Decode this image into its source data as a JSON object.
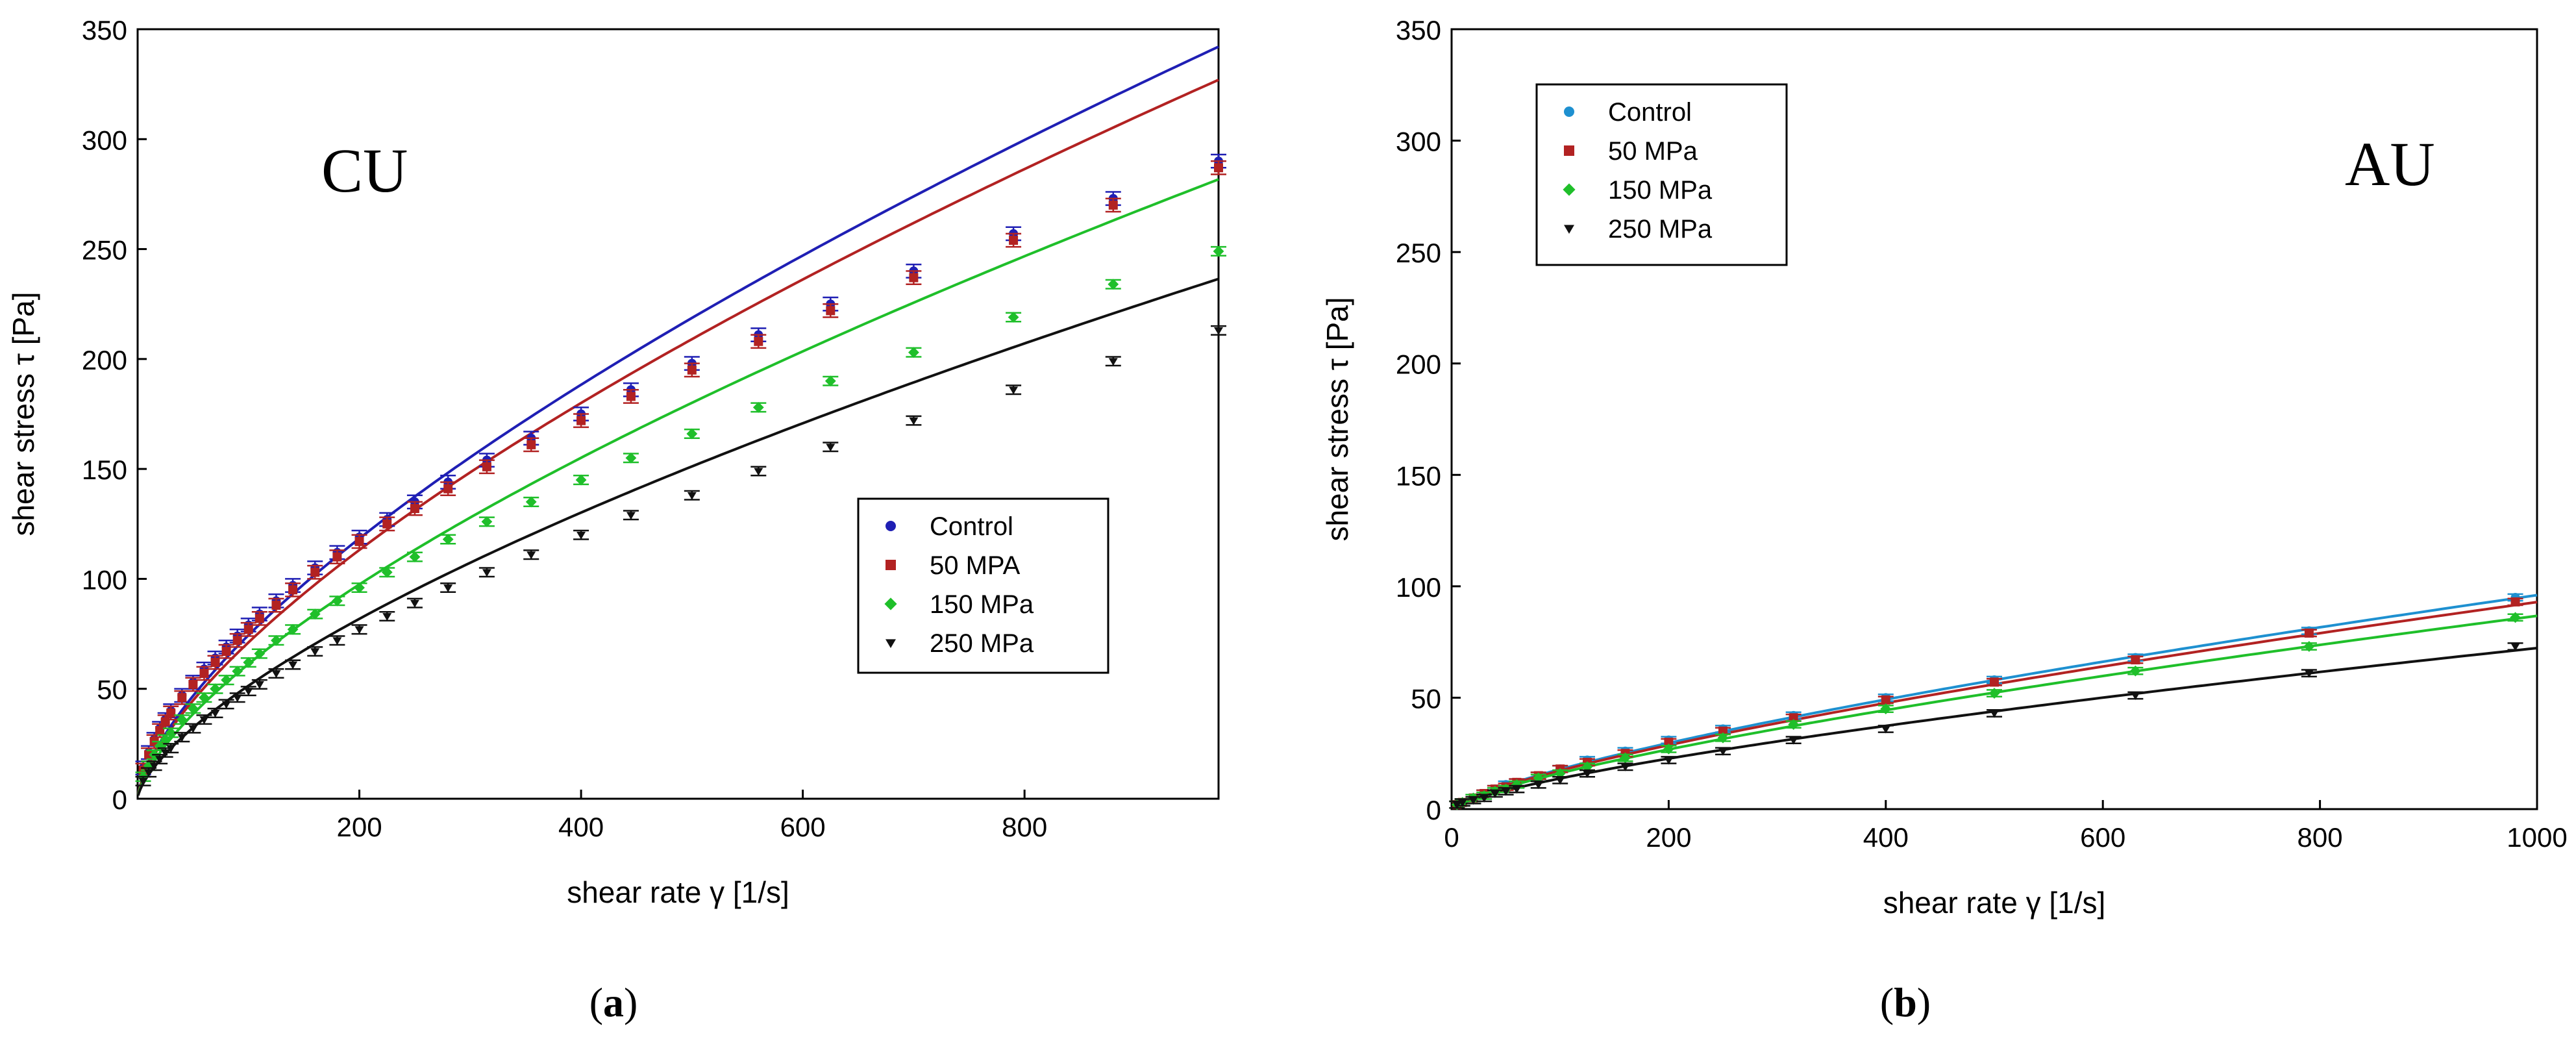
{
  "chart_data": [
    {
      "type": "scatter",
      "panel_label_open": "(",
      "panel_label_letter": "a",
      "panel_label_close": ")",
      "annotation": "CU",
      "xlabel": "shear rate γ [1/s]",
      "ylabel": "shear stress τ [Pa]",
      "xlim": [
        0,
        975
      ],
      "ylim": [
        0,
        350
      ],
      "xticks": [
        200,
        400,
        600,
        800
      ],
      "yticks": [
        0,
        50,
        100,
        150,
        200,
        250,
        300,
        350
      ],
      "legend_position": "center-right",
      "grid": false,
      "series": [
        {
          "name": "Control",
          "color": "#1f1fb4",
          "marker": "circle",
          "x": [
            5,
            10,
            15,
            20,
            25,
            30,
            40,
            50,
            60,
            70,
            80,
            90,
            100,
            110,
            125,
            140,
            160,
            180,
            200,
            225,
            250,
            280,
            315,
            355,
            400,
            445,
            500,
            560,
            625,
            700,
            790,
            880,
            975
          ],
          "y": [
            14,
            21,
            27,
            32,
            36,
            40,
            47,
            53,
            59,
            64,
            69,
            74,
            79,
            84,
            90,
            97,
            105,
            112,
            119,
            127,
            135,
            144,
            154,
            164,
            175,
            186,
            198,
            211,
            225,
            240,
            257,
            273,
            290
          ],
          "err": 3,
          "fit": {
            "K": 3.4,
            "n": 0.67
          }
        },
        {
          "name": "50 MPA",
          "color": "#b22222",
          "marker": "square",
          "x": [
            5,
            10,
            15,
            20,
            25,
            30,
            40,
            50,
            60,
            70,
            80,
            90,
            100,
            110,
            125,
            140,
            160,
            180,
            200,
            225,
            250,
            280,
            315,
            355,
            400,
            445,
            500,
            560,
            625,
            700,
            790,
            880,
            975
          ],
          "y": [
            13,
            20,
            26,
            31,
            35,
            39,
            46,
            52,
            57,
            62,
            67,
            72,
            77,
            82,
            88,
            95,
            103,
            110,
            117,
            125,
            132,
            141,
            151,
            161,
            172,
            183,
            195,
            208,
            222,
            237,
            254,
            270,
            287
          ],
          "err": 3,
          "fit": {
            "K": 3.25,
            "n": 0.67
          }
        },
        {
          "name": "150 MPa",
          "color": "#1fbf2a",
          "marker": "diamond",
          "x": [
            5,
            10,
            15,
            20,
            25,
            30,
            40,
            50,
            60,
            70,
            80,
            90,
            100,
            110,
            125,
            140,
            160,
            180,
            200,
            225,
            250,
            280,
            315,
            355,
            400,
            445,
            500,
            560,
            625,
            700,
            790,
            880,
            975
          ],
          "y": [
            10,
            15,
            20,
            24,
            27,
            30,
            36,
            41,
            46,
            50,
            54,
            58,
            62,
            66,
            72,
            77,
            84,
            90,
            96,
            103,
            110,
            118,
            126,
            135,
            145,
            155,
            166,
            178,
            190,
            203,
            219,
            234,
            249
          ],
          "err": 2,
          "fit": {
            "K": 2.8,
            "n": 0.67
          }
        },
        {
          "name": "250 MPa",
          "color": "#111111",
          "marker": "triangle-down",
          "x": [
            5,
            10,
            15,
            20,
            25,
            30,
            40,
            50,
            60,
            70,
            80,
            90,
            100,
            110,
            125,
            140,
            160,
            180,
            200,
            225,
            250,
            280,
            315,
            355,
            400,
            445,
            500,
            560,
            625,
            700,
            790,
            880,
            975
          ],
          "y": [
            8,
            12,
            15,
            18,
            21,
            23,
            28,
            32,
            36,
            39,
            43,
            46,
            49,
            52,
            57,
            61,
            67,
            72,
            77,
            83,
            89,
            96,
            103,
            111,
            120,
            129,
            138,
            149,
            160,
            172,
            186,
            199,
            213
          ],
          "err": 2,
          "fit": {
            "K": 2.35,
            "n": 0.67
          }
        }
      ]
    },
    {
      "type": "scatter",
      "panel_label_open": "(",
      "panel_label_letter": "b",
      "panel_label_close": ")",
      "annotation": "AU",
      "xlabel": "shear rate γ [1/s]",
      "ylabel": "shear stress τ [Pa]",
      "xlim": [
        0,
        1000
      ],
      "ylim": [
        0,
        350
      ],
      "xticks": [
        0,
        200,
        400,
        600,
        800,
        1000
      ],
      "yticks": [
        0,
        50,
        100,
        150,
        200,
        250,
        300,
        350
      ],
      "legend_position": "top-left",
      "grid": false,
      "series": [
        {
          "name": "Control",
          "color": "#1e90d0",
          "marker": "circle",
          "x": [
            5,
            10,
            20,
            30,
            40,
            50,
            60,
            80,
            100,
            125,
            160,
            200,
            250,
            315,
            400,
            500,
            630,
            790,
            980
          ],
          "y": [
            2,
            3,
            5,
            7,
            9,
            11,
            12,
            15,
            18,
            22,
            26,
            31,
            36,
            42,
            50,
            58,
            68,
            80,
            95
          ],
          "err": 1.5,
          "fit": {
            "K": 0.62,
            "n": 0.73
          }
        },
        {
          "name": "50 MPa",
          "color": "#b22222",
          "marker": "square",
          "x": [
            5,
            10,
            20,
            30,
            40,
            50,
            60,
            80,
            100,
            125,
            160,
            200,
            250,
            315,
            400,
            500,
            630,
            790,
            980
          ],
          "y": [
            2,
            3,
            5,
            7,
            9,
            10,
            12,
            15,
            18,
            21,
            25,
            30,
            35,
            41,
            49,
            57,
            67,
            79,
            93
          ],
          "err": 1.5,
          "fit": {
            "K": 0.6,
            "n": 0.73
          }
        },
        {
          "name": "150 MPa",
          "color": "#1fbf2a",
          "marker": "diamond",
          "x": [
            5,
            10,
            20,
            30,
            40,
            50,
            60,
            80,
            100,
            125,
            160,
            200,
            250,
            315,
            400,
            500,
            630,
            790,
            980
          ],
          "y": [
            2,
            3,
            5,
            6,
            8,
            9,
            11,
            14,
            16,
            19,
            23,
            27,
            32,
            38,
            45,
            52,
            62,
            73,
            86
          ],
          "err": 1.5,
          "fit": {
            "K": 0.56,
            "n": 0.73
          }
        },
        {
          "name": "250 MPa",
          "color": "#111111",
          "marker": "triangle-down",
          "x": [
            5,
            10,
            20,
            30,
            40,
            50,
            60,
            80,
            100,
            125,
            160,
            200,
            250,
            315,
            400,
            500,
            630,
            790,
            980
          ],
          "y": [
            2,
            3,
            4,
            5,
            7,
            8,
            9,
            11,
            13,
            16,
            19,
            22,
            26,
            31,
            36,
            43,
            51,
            61,
            73
          ],
          "err": 1.5,
          "fit": {
            "K": 0.5,
            "n": 0.72
          }
        }
      ]
    }
  ]
}
